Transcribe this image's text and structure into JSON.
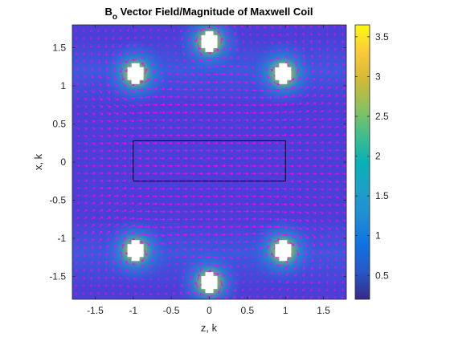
{
  "chart_data": {
    "type": "heatmap",
    "title": "B",
    "title_subscript": "o",
    "title_rest": " Vector Field/Magnitude of Maxwell Coil",
    "xlabel": "z, k",
    "ylabel": "x, k",
    "xlim": [
      -1.8,
      1.8
    ],
    "ylim": [
      -1.8,
      1.8
    ],
    "xticks": [
      -1.5,
      -1,
      -0.5,
      0,
      0.5,
      1,
      1.5
    ],
    "xtick_labels": [
      "-1.5",
      "-1",
      "-0.5",
      "0",
      "0.5",
      "1",
      "1.5"
    ],
    "yticks": [
      1.5,
      1,
      0.5,
      0,
      -0.5,
      -1,
      -1.5
    ],
    "ytick_labels": [
      "1.5",
      "1",
      "0.5",
      "0",
      "-0.5",
      "-1",
      "-1.5"
    ],
    "grid": false,
    "colormap": "parula",
    "colorbar": {
      "range": [
        0.2,
        3.65
      ],
      "ticks": [
        0.5,
        1,
        1.5,
        2,
        2.5,
        3,
        3.5
      ],
      "tick_labels": [
        "0.5",
        "1",
        "1.5",
        "2",
        "2.5",
        "3",
        "3.5"
      ]
    },
    "coil_wires": [
      {
        "z": 0,
        "x": 1.58,
        "current": 1
      },
      {
        "z": -0.97,
        "x": 1.16,
        "current": 1
      },
      {
        "z": 0.97,
        "x": 1.16,
        "current": 1
      },
      {
        "z": 0,
        "x": -1.58,
        "current": -1
      },
      {
        "z": -0.97,
        "x": -1.16,
        "current": -1
      },
      {
        "z": 0.97,
        "x": -1.16,
        "current": -1
      }
    ],
    "region_box": {
      "z": [
        -1,
        1
      ],
      "x": [
        -0.25,
        0.28
      ]
    },
    "vector_color": "#ff00ff",
    "background_color": "#4a3fd6"
  }
}
